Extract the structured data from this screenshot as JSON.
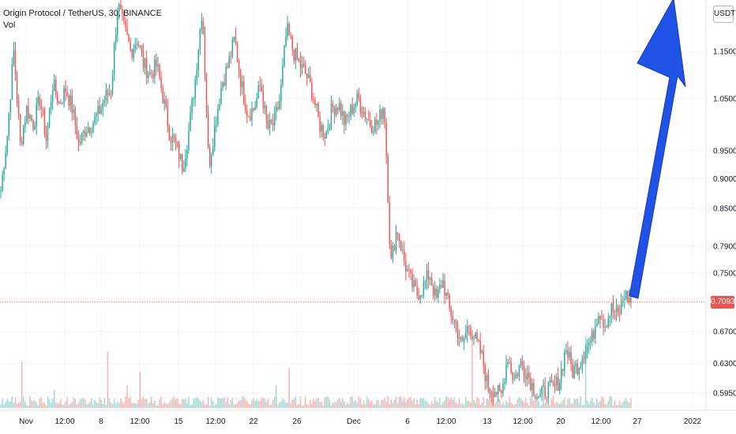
{
  "legend": {
    "symbol": "Origin Protocol / TetherUS, 30, BINANCE",
    "volume": "Vol"
  },
  "unit_label": "USDT",
  "last_price_label": "0.7093",
  "colors": {
    "up": "#26a69a",
    "down": "#ef5350",
    "arrow": "#1e53e5",
    "grid": "#f0f3fa",
    "last_price_line": "#ef5350"
  },
  "chart_data": {
    "type": "line",
    "title": "Origin Protocol / TetherUS, 30, BINANCE",
    "subtitle": "",
    "scale": "log",
    "ylim": [
      0.58,
      1.27
    ],
    "y_ticks": [
      "1.1500",
      "1.0500",
      "0.9500",
      "0.9000",
      "0.8500",
      "0.7900",
      "0.7500",
      "0.6700",
      "0.6300",
      "0.5950"
    ],
    "x_ticks": [
      "Nov",
      "12:00",
      "8",
      "12:00",
      "15",
      "12:00",
      "22",
      "26",
      "Dec",
      "6",
      "12:00",
      "13",
      "12:00",
      "20",
      "12:00",
      "27",
      "2022"
    ],
    "series": [
      {
        "values": [
          0.88,
          0.98,
          1.15,
          0.96,
          1.03,
          1.0,
          1.05,
          0.97,
          1.08,
          1.04,
          1.07,
          1.03,
          0.96,
          0.99,
          1.0,
          1.02,
          1.05,
          1.07,
          1.26,
          1.2,
          1.15,
          1.18,
          1.12,
          1.1,
          1.12,
          1.05,
          0.98,
          0.96,
          0.92,
          0.99,
          1.1,
          1.25,
          0.92,
          1.0,
          1.08,
          1.12,
          1.18,
          1.08,
          1.02,
          1.03,
          1.08,
          0.99,
          1.0,
          1.05,
          1.2,
          1.15,
          1.12,
          1.1,
          1.06,
          1.0,
          0.98,
          1.03,
          1.04,
          1.0,
          1.03,
          1.05,
          1.02,
          1.0,
          1.0,
          1.04,
          0.76,
          0.82,
          0.77,
          0.74,
          0.72,
          0.73,
          0.75,
          0.71,
          0.74,
          0.7,
          0.68,
          0.65,
          0.68,
          0.66,
          0.64,
          0.6,
          0.6,
          0.59,
          0.64,
          0.61,
          0.63,
          0.62,
          0.6,
          0.59,
          0.6,
          0.6,
          0.61,
          0.65,
          0.62,
          0.63,
          0.65,
          0.66,
          0.7,
          0.68,
          0.7,
          0.69,
          0.72,
          0.71
        ]
      }
    ],
    "last_price": 0.7093,
    "annotation": "up arrow",
    "grid": true,
    "legend_position": "top-left"
  }
}
